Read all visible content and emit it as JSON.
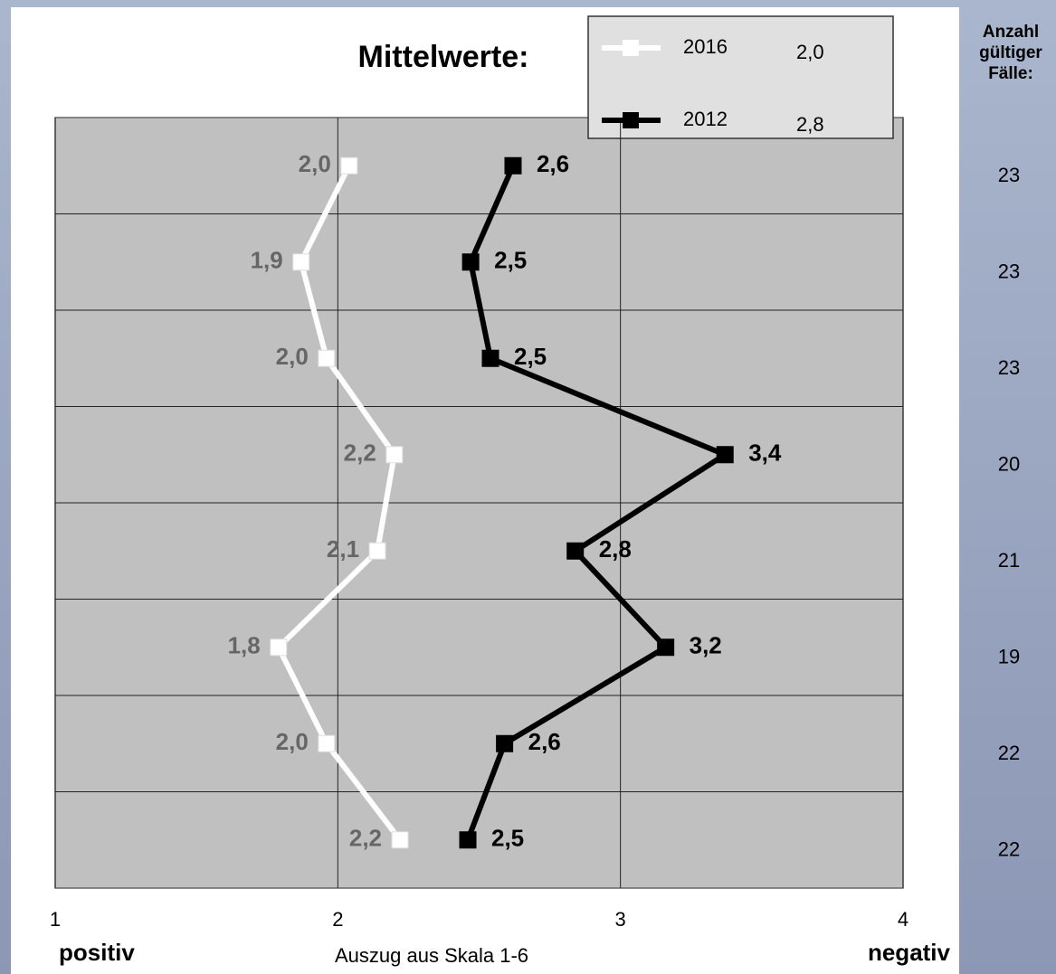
{
  "chart_data": {
    "type": "line",
    "orientation": "horizontal",
    "title": "Mittelwerte:",
    "categories": [
      null,
      null,
      null,
      null,
      null,
      null,
      null,
      null
    ],
    "series": [
      {
        "name": "2016",
        "color": "#ffffff",
        "label_color": "#666666",
        "legend_value": "2,0",
        "values": [
          2.04,
          1.87,
          1.96,
          2.2,
          2.14,
          1.79,
          1.96,
          2.22
        ],
        "value_labels": [
          "2,0",
          "1,9",
          "2,0",
          "2,2",
          "2,1",
          "1,8",
          "2,0",
          "2,2"
        ]
      },
      {
        "name": "2012",
        "color": "#000000",
        "label_color": "#000000",
        "legend_value": "2,8",
        "values": [
          2.62,
          2.47,
          2.54,
          3.37,
          2.84,
          3.16,
          2.59,
          2.46
        ],
        "value_labels": [
          "2,6",
          "2,5",
          "2,5",
          "3,4",
          "2,8",
          "3,2",
          "2,6",
          "2,5"
        ]
      }
    ],
    "xlim": [
      1,
      4
    ],
    "xticks": [
      1,
      2,
      3,
      4
    ],
    "grid": true,
    "x_label_left": "positiv",
    "x_label": "Auszug aus Skala 1-6",
    "x_label_right": "negativ",
    "counts_title": [
      "Anzahl",
      "gültiger",
      "Fälle:"
    ],
    "counts": [
      23,
      23,
      23,
      20,
      21,
      19,
      22,
      22
    ]
  }
}
